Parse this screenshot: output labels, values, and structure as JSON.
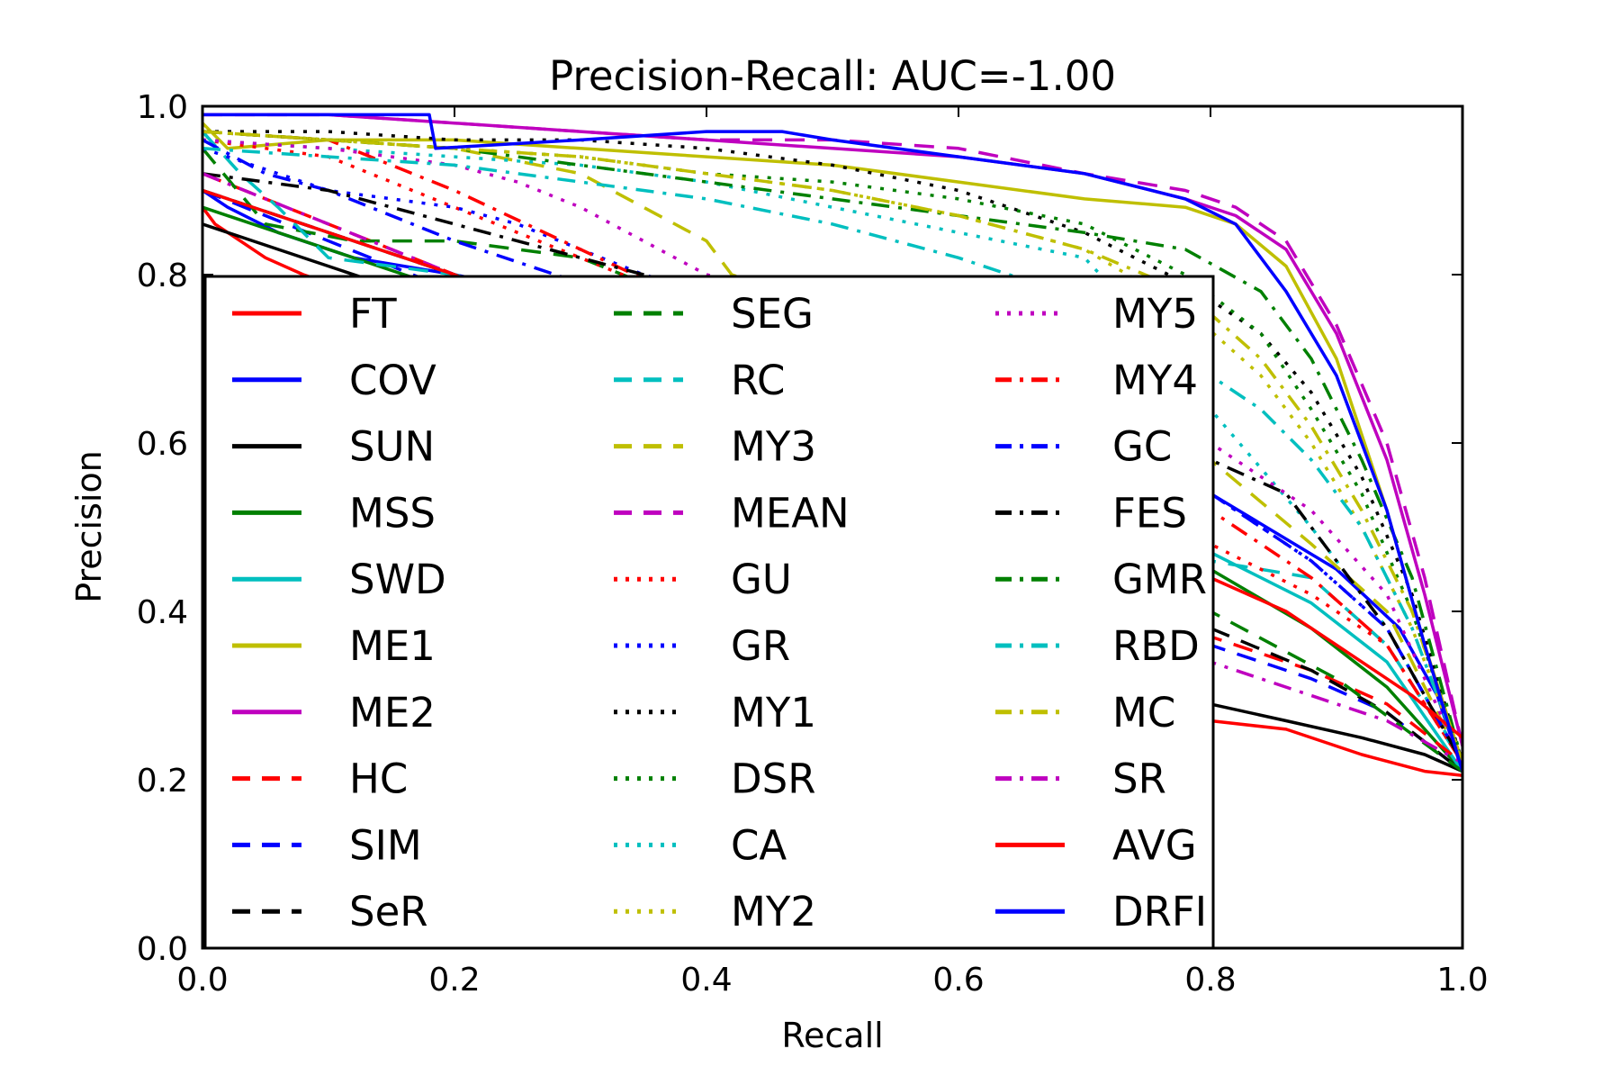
{
  "chart_data": {
    "type": "line",
    "title": "Precision-Recall: AUC=-1.00",
    "xlabel": "Recall",
    "ylabel": "Precision",
    "xlim": [
      0,
      1
    ],
    "ylim": [
      0,
      1
    ],
    "xticks": [
      "0.0",
      "0.2",
      "0.4",
      "0.6",
      "0.8",
      "1.0"
    ],
    "yticks": [
      "0.0",
      "0.2",
      "0.4",
      "0.6",
      "0.8",
      "1.0"
    ],
    "grid": false,
    "legend_placement": "lower-left",
    "series": [
      {
        "name": "FT",
        "color": "#ff0000",
        "style": "solid",
        "x": [
          0.0,
          0.01,
          0.03,
          0.05,
          0.08,
          0.12,
          0.2,
          0.4,
          0.6,
          0.8,
          0.86,
          0.92,
          0.97,
          1.0
        ],
        "y": [
          0.88,
          0.86,
          0.84,
          0.82,
          0.8,
          0.78,
          0.74,
          0.6,
          0.44,
          0.27,
          0.26,
          0.23,
          0.21,
          0.205
        ]
      },
      {
        "name": "COV",
        "color": "#0000ff",
        "style": "solid",
        "x": [
          0.0,
          0.02,
          0.06,
          0.12,
          0.2,
          0.4,
          0.6,
          0.8,
          0.9,
          0.95,
          0.98,
          1.0
        ],
        "y": [
          0.9,
          0.88,
          0.85,
          0.82,
          0.8,
          0.74,
          0.64,
          0.54,
          0.45,
          0.38,
          0.3,
          0.21
        ]
      },
      {
        "name": "SUN",
        "color": "#000000",
        "style": "solid",
        "x": [
          0.0,
          0.2,
          0.4,
          0.6,
          0.8,
          0.86,
          0.92,
          0.97,
          1.0
        ],
        "y": [
          0.86,
          0.76,
          0.62,
          0.46,
          0.29,
          0.27,
          0.25,
          0.23,
          0.21
        ]
      },
      {
        "name": "MSS",
        "color": "#008000",
        "style": "solid",
        "x": [
          0.0,
          0.2,
          0.4,
          0.6,
          0.8,
          0.88,
          0.94,
          1.0
        ],
        "y": [
          0.88,
          0.78,
          0.66,
          0.56,
          0.45,
          0.38,
          0.31,
          0.21
        ]
      },
      {
        "name": "SWD",
        "color": "#00bfbf",
        "style": "solid",
        "x": [
          0.0,
          0.2,
          0.4,
          0.6,
          0.8,
          0.88,
          0.94,
          1.0
        ],
        "y": [
          0.9,
          0.8,
          0.68,
          0.58,
          0.47,
          0.41,
          0.34,
          0.21
        ]
      },
      {
        "name": "ME1",
        "color": "#bfbf00",
        "style": "solid",
        "x": [
          0.0,
          0.02,
          0.1,
          0.2,
          0.3,
          0.4,
          0.5,
          0.6,
          0.7,
          0.78,
          0.82,
          0.86,
          0.9,
          0.94,
          0.97,
          1.0
        ],
        "y": [
          0.98,
          0.95,
          0.96,
          0.96,
          0.95,
          0.94,
          0.93,
          0.91,
          0.89,
          0.88,
          0.86,
          0.81,
          0.7,
          0.52,
          0.36,
          0.22
        ]
      },
      {
        "name": "ME2",
        "color": "#bf00bf",
        "style": "solid",
        "x": [
          0.0,
          0.1,
          0.2,
          0.3,
          0.4,
          0.5,
          0.6,
          0.7,
          0.78,
          0.82,
          0.86,
          0.9,
          0.94,
          0.97,
          1.0
        ],
        "y": [
          0.99,
          0.99,
          0.98,
          0.97,
          0.96,
          0.95,
          0.94,
          0.92,
          0.89,
          0.87,
          0.83,
          0.73,
          0.58,
          0.42,
          0.24
        ]
      },
      {
        "name": "HC",
        "color": "#ff0000",
        "style": "dashed",
        "x": [
          0.0,
          0.2,
          0.4,
          0.6,
          0.8,
          0.88,
          0.94,
          1.0
        ],
        "y": [
          0.92,
          0.8,
          0.66,
          0.52,
          0.37,
          0.33,
          0.29,
          0.22
        ]
      },
      {
        "name": "SIM",
        "color": "#0000ff",
        "style": "dashed",
        "x": [
          0.0,
          0.2,
          0.4,
          0.6,
          0.8,
          0.88,
          0.94,
          1.0
        ],
        "y": [
          0.9,
          0.78,
          0.64,
          0.5,
          0.36,
          0.32,
          0.28,
          0.21
        ]
      },
      {
        "name": "SeR",
        "color": "#000000",
        "style": "dashed",
        "x": [
          0.0,
          0.2,
          0.4,
          0.6,
          0.8,
          0.88,
          0.94,
          1.0
        ],
        "y": [
          0.9,
          0.8,
          0.68,
          0.54,
          0.38,
          0.33,
          0.28,
          0.21
        ]
      },
      {
        "name": "SEG",
        "color": "#008000",
        "style": "dashed",
        "x": [
          0.0,
          0.05,
          0.12,
          0.2,
          0.3,
          0.4,
          0.5,
          0.6,
          0.7,
          0.8,
          0.9,
          1.0
        ],
        "y": [
          0.95,
          0.86,
          0.84,
          0.84,
          0.82,
          0.76,
          0.7,
          0.62,
          0.52,
          0.4,
          0.32,
          0.21
        ]
      },
      {
        "name": "RC",
        "color": "#00bfbf",
        "style": "dashed",
        "x": [
          0.0,
          0.03,
          0.06,
          0.08,
          0.1,
          0.2,
          0.4,
          0.6,
          0.8,
          0.88,
          0.94,
          1.0
        ],
        "y": [
          0.97,
          0.92,
          0.88,
          0.85,
          0.82,
          0.8,
          0.72,
          0.6,
          0.46,
          0.44,
          0.36,
          0.22
        ]
      },
      {
        "name": "MY3",
        "color": "#bfbf00",
        "style": "dashed",
        "x": [
          0.0,
          0.1,
          0.2,
          0.3,
          0.35,
          0.4,
          0.42,
          0.5,
          0.6,
          0.7,
          0.8,
          0.88,
          0.94,
          1.0
        ],
        "y": [
          0.97,
          0.96,
          0.95,
          0.92,
          0.88,
          0.84,
          0.8,
          0.76,
          0.72,
          0.66,
          0.58,
          0.48,
          0.4,
          0.22
        ]
      },
      {
        "name": "MEAN",
        "color": "#bf00bf",
        "style": "dashed",
        "x": [
          0.0,
          0.1,
          0.2,
          0.3,
          0.4,
          0.5,
          0.6,
          0.7,
          0.78,
          0.82,
          0.86,
          0.9,
          0.94,
          0.97,
          1.0
        ],
        "y": [
          0.99,
          0.99,
          0.98,
          0.97,
          0.96,
          0.96,
          0.95,
          0.92,
          0.9,
          0.88,
          0.84,
          0.74,
          0.6,
          0.44,
          0.24
        ]
      },
      {
        "name": "GU",
        "color": "#ff0000",
        "style": "dotted",
        "x": [
          0.0,
          0.1,
          0.2,
          0.3,
          0.4,
          0.5,
          0.6,
          0.7,
          0.8,
          0.88,
          0.94,
          1.0
        ],
        "y": [
          0.96,
          0.94,
          0.88,
          0.82,
          0.76,
          0.7,
          0.64,
          0.56,
          0.48,
          0.42,
          0.36,
          0.22
        ]
      },
      {
        "name": "GR",
        "color": "#0000ff",
        "style": "dotted",
        "x": [
          0.0,
          0.1,
          0.2,
          0.25,
          0.3,
          0.35,
          0.4,
          0.5,
          0.6,
          0.7,
          0.8,
          0.88,
          0.94,
          1.0
        ],
        "y": [
          0.95,
          0.9,
          0.88,
          0.86,
          0.83,
          0.8,
          0.78,
          0.74,
          0.68,
          0.62,
          0.54,
          0.46,
          0.38,
          0.22
        ]
      },
      {
        "name": "MY1",
        "color": "#000000",
        "style": "dotted",
        "x": [
          0.0,
          0.1,
          0.2,
          0.3,
          0.4,
          0.5,
          0.6,
          0.7,
          0.78,
          0.84,
          0.88,
          0.92,
          0.96,
          1.0
        ],
        "y": [
          0.97,
          0.97,
          0.96,
          0.96,
          0.95,
          0.93,
          0.9,
          0.85,
          0.79,
          0.73,
          0.66,
          0.56,
          0.42,
          0.22
        ]
      },
      {
        "name": "DSR",
        "color": "#008000",
        "style": "dotted",
        "x": [
          0.0,
          0.1,
          0.2,
          0.3,
          0.4,
          0.5,
          0.6,
          0.7,
          0.78,
          0.84,
          0.88,
          0.92,
          0.96,
          1.0
        ],
        "y": [
          0.97,
          0.96,
          0.95,
          0.94,
          0.92,
          0.91,
          0.89,
          0.86,
          0.8,
          0.73,
          0.64,
          0.54,
          0.4,
          0.22
        ]
      },
      {
        "name": "CA",
        "color": "#00bfbf",
        "style": "dotted",
        "x": [
          0.0,
          0.1,
          0.2,
          0.3,
          0.4,
          0.5,
          0.6,
          0.7,
          0.75,
          0.8,
          0.88,
          0.94,
          1.0
        ],
        "y": [
          0.96,
          0.95,
          0.94,
          0.93,
          0.91,
          0.88,
          0.85,
          0.82,
          0.74,
          0.64,
          0.5,
          0.38,
          0.22
        ]
      },
      {
        "name": "MY2",
        "color": "#bfbf00",
        "style": "dotted",
        "x": [
          0.0,
          0.1,
          0.2,
          0.3,
          0.4,
          0.5,
          0.6,
          0.7,
          0.78,
          0.84,
          0.88,
          0.92,
          0.96,
          1.0
        ],
        "y": [
          0.97,
          0.96,
          0.95,
          0.94,
          0.92,
          0.9,
          0.87,
          0.83,
          0.76,
          0.68,
          0.6,
          0.5,
          0.38,
          0.22
        ]
      },
      {
        "name": "MY5",
        "color": "#bf00bf",
        "style": "dotted",
        "x": [
          0.0,
          0.1,
          0.2,
          0.25,
          0.3,
          0.35,
          0.4,
          0.5,
          0.6,
          0.7,
          0.8,
          0.88,
          0.94,
          1.0
        ],
        "y": [
          0.96,
          0.95,
          0.93,
          0.91,
          0.88,
          0.84,
          0.8,
          0.76,
          0.72,
          0.66,
          0.6,
          0.52,
          0.42,
          0.22
        ]
      },
      {
        "name": "MY4",
        "color": "#ff0000",
        "style": "dashdot",
        "x": [
          0.0,
          0.1,
          0.2,
          0.4,
          0.6,
          0.8,
          0.88,
          0.94,
          1.0
        ],
        "y": [
          0.97,
          0.96,
          0.9,
          0.76,
          0.64,
          0.52,
          0.44,
          0.36,
          0.22
        ]
      },
      {
        "name": "GC",
        "color": "#0000ff",
        "style": "dashdot",
        "x": [
          0.0,
          0.05,
          0.1,
          0.2,
          0.4,
          0.6,
          0.8,
          0.88,
          0.94,
          1.0
        ],
        "y": [
          0.96,
          0.92,
          0.9,
          0.84,
          0.74,
          0.64,
          0.54,
          0.46,
          0.38,
          0.22
        ]
      },
      {
        "name": "FES",
        "color": "#000000",
        "style": "dashdot",
        "x": [
          0.0,
          0.1,
          0.2,
          0.3,
          0.4,
          0.5,
          0.6,
          0.7,
          0.8,
          0.86,
          0.9,
          0.94,
          1.0
        ],
        "y": [
          0.92,
          0.9,
          0.86,
          0.82,
          0.78,
          0.74,
          0.7,
          0.64,
          0.58,
          0.54,
          0.46,
          0.38,
          0.22
        ]
      },
      {
        "name": "GMR",
        "color": "#008000",
        "style": "dashdot",
        "x": [
          0.0,
          0.1,
          0.2,
          0.3,
          0.4,
          0.5,
          0.6,
          0.7,
          0.78,
          0.84,
          0.88,
          0.92,
          0.96,
          1.0
        ],
        "y": [
          0.97,
          0.96,
          0.95,
          0.93,
          0.91,
          0.89,
          0.87,
          0.85,
          0.83,
          0.78,
          0.7,
          0.58,
          0.44,
          0.22
        ]
      },
      {
        "name": "RBD",
        "color": "#00bfbf",
        "style": "dashdot",
        "x": [
          0.0,
          0.1,
          0.2,
          0.3,
          0.4,
          0.5,
          0.6,
          0.7,
          0.78,
          0.84,
          0.88,
          0.92,
          0.96,
          1.0
        ],
        "y": [
          0.95,
          0.94,
          0.93,
          0.91,
          0.89,
          0.86,
          0.82,
          0.77,
          0.7,
          0.64,
          0.58,
          0.5,
          0.38,
          0.22
        ]
      },
      {
        "name": "MC",
        "color": "#bfbf00",
        "style": "dashdot",
        "x": [
          0.0,
          0.1,
          0.2,
          0.3,
          0.4,
          0.5,
          0.6,
          0.7,
          0.78,
          0.84,
          0.88,
          0.92,
          0.96,
          1.0
        ],
        "y": [
          0.97,
          0.96,
          0.95,
          0.94,
          0.92,
          0.9,
          0.87,
          0.83,
          0.78,
          0.7,
          0.62,
          0.52,
          0.4,
          0.22
        ]
      },
      {
        "name": "SR",
        "color": "#bf00bf",
        "style": "dashdot",
        "x": [
          0.0,
          0.1,
          0.2,
          0.4,
          0.6,
          0.8,
          0.88,
          0.94,
          1.0
        ],
        "y": [
          0.92,
          0.86,
          0.8,
          0.66,
          0.5,
          0.34,
          0.3,
          0.27,
          0.22
        ]
      },
      {
        "name": "AVG",
        "color": "#ff0000",
        "style": "solid",
        "x": [
          0.0,
          0.2,
          0.4,
          0.6,
          0.8,
          0.86,
          0.92,
          0.96,
          1.0
        ],
        "y": [
          0.9,
          0.8,
          0.68,
          0.56,
          0.44,
          0.4,
          0.34,
          0.3,
          0.25
        ]
      },
      {
        "name": "DRFI",
        "color": "#0000ff",
        "style": "solid",
        "x": [
          0.0,
          0.05,
          0.1,
          0.18,
          0.185,
          0.3,
          0.4,
          0.46,
          0.5,
          0.6,
          0.7,
          0.78,
          0.82,
          0.86,
          0.9,
          0.94,
          0.97,
          1.0
        ],
        "y": [
          0.99,
          0.99,
          0.99,
          0.99,
          0.95,
          0.96,
          0.97,
          0.97,
          0.96,
          0.94,
          0.92,
          0.89,
          0.86,
          0.78,
          0.68,
          0.52,
          0.36,
          0.21
        ]
      }
    ]
  }
}
